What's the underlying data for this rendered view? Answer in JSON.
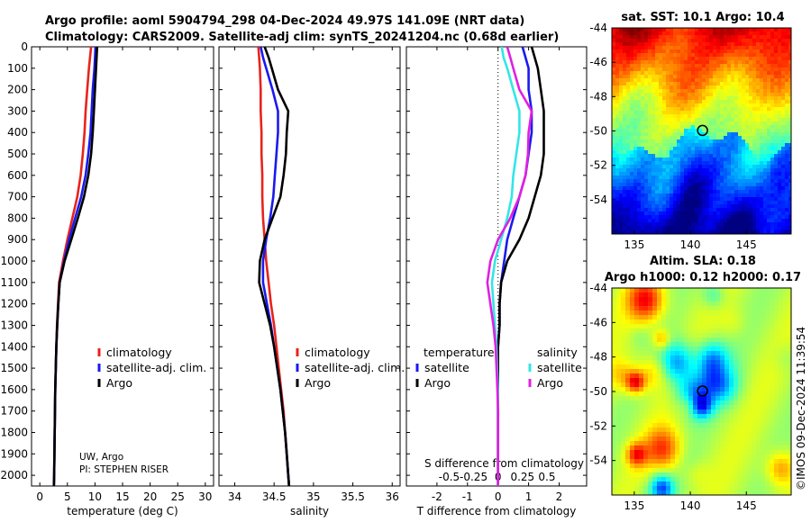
{
  "header": {
    "line1": "Argo profile: aoml 5904794_298 04-Dec-2024 49.97S 141.09E (NRT data)",
    "line2": "Climatology: CARS2009. Satellite-adj clim: synTS_20241204.nc (0.68d earlier)"
  },
  "credits": {
    "institution": "UW, Argo",
    "pi": "PI: STEPHEN RISER",
    "watermark": "©IMOS 09-Dec-2024 11:39:54"
  },
  "colors": {
    "climatology": "#e8231c",
    "satellite_adj": "#1a1aee",
    "argo": "#000000",
    "sat_diff_salinity": "#33e6e6",
    "argo_diff_salinity": "#e020e0"
  },
  "chart_data": [
    {
      "type": "line",
      "id": "temperature",
      "xlabel": "temperature (deg C)",
      "ylabel": "",
      "xlim": [
        -1.5,
        31.5
      ],
      "ylim": [
        2050,
        0
      ],
      "xticks": [
        0,
        5,
        10,
        15,
        20,
        25,
        30
      ],
      "yticks": [
        0,
        100,
        200,
        300,
        400,
        500,
        600,
        700,
        800,
        900,
        1000,
        1100,
        1200,
        1300,
        1400,
        1500,
        1600,
        1700,
        1800,
        1900,
        2000
      ],
      "legend": [
        "climatology",
        "satellite-adj. clim.",
        "Argo"
      ],
      "depth": [
        0,
        50,
        100,
        200,
        300,
        400,
        500,
        600,
        700,
        800,
        900,
        1000,
        1100,
        1200,
        1300,
        1400,
        1500,
        1600,
        1700,
        1800,
        1900,
        2000,
        2050
      ],
      "series": [
        {
          "name": "climatology",
          "values": [
            9.3,
            9.1,
            8.9,
            8.6,
            8.3,
            8.1,
            7.8,
            7.4,
            6.8,
            5.9,
            5.0,
            4.2,
            3.5,
            3.3,
            3.1,
            3.0,
            2.9,
            2.8,
            2.75,
            2.7,
            2.65,
            2.6,
            2.55
          ]
        },
        {
          "name": "satellite-adj. clim.",
          "values": [
            10.1,
            10.0,
            9.9,
            9.6,
            9.4,
            9.2,
            8.8,
            8.3,
            7.5,
            6.4,
            5.3,
            4.4,
            3.6,
            3.35,
            3.15,
            3.0,
            2.9,
            2.8,
            2.75,
            2.7,
            2.65,
            2.6,
            2.55
          ]
        },
        {
          "name": "Argo",
          "values": [
            10.4,
            10.3,
            10.2,
            10.0,
            9.8,
            9.6,
            9.3,
            8.8,
            8.0,
            6.9,
            5.7,
            4.5,
            3.6,
            3.35,
            3.15,
            3.0,
            2.9,
            2.8,
            2.75,
            2.7,
            2.65,
            2.6,
            2.55
          ]
        }
      ]
    },
    {
      "type": "line",
      "id": "salinity",
      "xlabel": "salinity",
      "xlim": [
        33.8,
        36.1
      ],
      "ylim": [
        2050,
        0
      ],
      "xticks": [
        34,
        34.5,
        35,
        35.5,
        36
      ],
      "legend": [
        "climatology",
        "satellite-adj. clim.",
        "Argo"
      ],
      "depth": [
        0,
        50,
        100,
        200,
        300,
        400,
        500,
        600,
        700,
        800,
        900,
        1000,
        1100,
        1200,
        1300,
        1400,
        1500,
        1600,
        1700,
        1800,
        1900,
        2000,
        2050
      ],
      "series": [
        {
          "name": "climatology",
          "values": [
            34.3,
            34.31,
            34.32,
            34.33,
            34.33,
            34.34,
            34.34,
            34.35,
            34.35,
            34.36,
            34.38,
            34.4,
            34.43,
            34.46,
            34.5,
            34.53,
            34.56,
            34.59,
            34.62,
            34.64,
            34.66,
            34.68,
            34.69
          ]
        },
        {
          "name": "satellite-adj. clim.",
          "values": [
            34.33,
            34.36,
            34.4,
            34.48,
            34.55,
            34.55,
            34.53,
            34.51,
            34.49,
            34.45,
            34.4,
            34.36,
            34.36,
            34.41,
            34.46,
            34.5,
            34.54,
            34.58,
            34.61,
            34.64,
            34.66,
            34.68,
            34.69
          ]
        },
        {
          "name": "Argo",
          "values": [
            34.38,
            34.43,
            34.47,
            34.55,
            34.68,
            34.66,
            34.65,
            34.62,
            34.58,
            34.48,
            34.38,
            34.32,
            34.31,
            34.38,
            34.45,
            34.5,
            34.54,
            34.58,
            34.61,
            34.64,
            34.66,
            34.68,
            34.69
          ]
        }
      ]
    },
    {
      "type": "line",
      "id": "difference",
      "xlabel": "T difference from climatology",
      "xlabel2": "S difference from climatology",
      "xlim": [
        -3.0,
        2.9
      ],
      "ylim": [
        2050,
        0
      ],
      "xticks": [
        -2,
        -1,
        0,
        1,
        2
      ],
      "top_tick_labels": [
        "-0.5",
        "-0.25",
        "0",
        "0.25",
        "0.5"
      ],
      "top_tick_values": [
        -1.6,
        -0.8,
        0,
        0.8,
        1.6
      ],
      "legend": {
        "temperature_title": "temperature",
        "salinity_title": "salinity",
        "entries": [
          "satellite",
          "Argo",
          "satellite",
          "Argo"
        ]
      },
      "depth": [
        0,
        50,
        100,
        200,
        300,
        400,
        500,
        600,
        700,
        800,
        900,
        1000,
        1100,
        1200,
        1300,
        1400,
        1500,
        1600,
        1700,
        1800,
        1900,
        2000,
        2050
      ],
      "series": [
        {
          "name": "T satellite",
          "values": [
            0.8,
            0.9,
            1.0,
            1.0,
            1.1,
            1.1,
            1.0,
            0.9,
            0.7,
            0.5,
            0.3,
            0.2,
            0.1,
            0.05,
            0.05,
            0.0,
            0.0,
            0.0,
            0.0,
            0.0,
            0.0,
            0.0,
            0.0
          ]
        },
        {
          "name": "T Argo",
          "values": [
            1.1,
            1.2,
            1.3,
            1.4,
            1.5,
            1.5,
            1.5,
            1.4,
            1.2,
            1.0,
            0.7,
            0.3,
            0.1,
            0.05,
            0.05,
            0.0,
            0.0,
            0.0,
            0.0,
            0.0,
            0.0,
            0.0,
            0.0
          ]
        },
        {
          "name": "S satellite",
          "values": [
            0.12,
            0.18,
            0.3,
            0.5,
            0.7,
            0.7,
            0.6,
            0.5,
            0.45,
            0.3,
            0.1,
            -0.1,
            -0.2,
            -0.15,
            -0.1,
            -0.05,
            -0.03,
            0.0,
            0.0,
            0.0,
            0.0,
            0.0,
            0.0
          ]
        },
        {
          "name": "S Argo",
          "values": [
            0.3,
            0.4,
            0.5,
            0.7,
            1.1,
            1.0,
            0.98,
            0.9,
            0.7,
            0.4,
            0.0,
            -0.25,
            -0.35,
            -0.25,
            -0.15,
            -0.08,
            -0.05,
            -0.02,
            0.0,
            0.0,
            0.0,
            0.0,
            0.0
          ]
        }
      ]
    },
    {
      "type": "heatmap",
      "id": "sst_map",
      "title": "sat. SST: 10.1 Argo: 10.4",
      "xlim": [
        133,
        149
      ],
      "ylim": [
        -56,
        -44
      ],
      "xticks": [
        135,
        140,
        145
      ],
      "yticks": [
        -44,
        -46,
        -48,
        -50,
        -52,
        -54
      ],
      "marker": {
        "lon": 141.09,
        "lat": -49.97
      }
    },
    {
      "type": "heatmap",
      "id": "sla_map",
      "title1": "Altim. SLA: 0.18",
      "title2": "Argo h1000: 0.12 h2000: 0.17",
      "xlim": [
        133,
        149
      ],
      "ylim": [
        -56,
        -44
      ],
      "xticks": [
        135,
        140,
        145
      ],
      "yticks": [
        -44,
        -46,
        -48,
        -50,
        -52,
        -54
      ],
      "marker": {
        "lon": 141.09,
        "lat": -49.97
      }
    }
  ]
}
